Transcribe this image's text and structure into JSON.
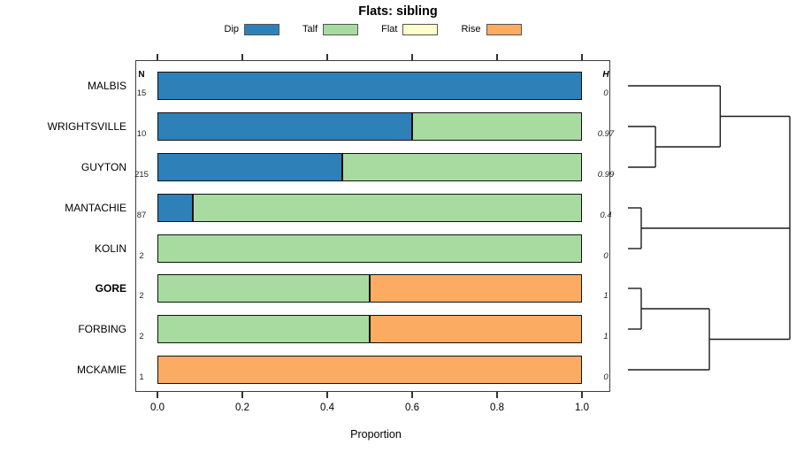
{
  "title": "Flats: sibling",
  "xlabel": "Proportion",
  "columns": {
    "n_header": "N",
    "h_header": "H"
  },
  "colors": {
    "Dip": "#2E80B8",
    "Talf": "#A8DBA0",
    "Flat": "#FFFFCC",
    "Rise": "#FBAC62",
    "bar_border": "#111111",
    "dendrogram_line": "#1c1c1c"
  },
  "legend": [
    {
      "label": "Dip",
      "color": "#2E80B8"
    },
    {
      "label": "Talf",
      "color": "#A8DBA0"
    },
    {
      "label": "Flat",
      "color": "#FFFFCC"
    },
    {
      "label": "Rise",
      "color": "#FBAC62"
    }
  ],
  "chart_data": {
    "type": "bar",
    "orientation": "horizontal",
    "stacked": true,
    "title": "Flats: sibling",
    "xlabel": "Proportion",
    "xlim": [
      0,
      1
    ],
    "x_ticks": [
      0,
      0.2,
      0.4,
      0.6,
      0.8,
      1
    ],
    "x_tick_labels": [
      "0.0",
      "0.2",
      "0.4",
      "0.6",
      "0.8",
      "1.0"
    ],
    "legend_position": "top",
    "series_names": [
      "Dip",
      "Talf",
      "Flat",
      "Rise"
    ],
    "rows": [
      {
        "label": "MALBIS",
        "n": "15",
        "h": "0",
        "bold": false,
        "segments": [
          {
            "series": "Dip",
            "value": 1.0
          }
        ]
      },
      {
        "label": "WRIGHTSVILLE",
        "n": "10",
        "h": "0.97",
        "bold": false,
        "segments": [
          {
            "series": "Dip",
            "value": 0.6
          },
          {
            "series": "Talf",
            "value": 0.4
          }
        ]
      },
      {
        "label": "GUYTON",
        "n": "215",
        "h": "0.99",
        "bold": false,
        "segments": [
          {
            "series": "Dip",
            "value": 0.435
          },
          {
            "series": "Talf",
            "value": 0.565
          }
        ]
      },
      {
        "label": "MANTACHIE",
        "n": "87",
        "h": "0.4",
        "bold": false,
        "segments": [
          {
            "series": "Dip",
            "value": 0.083
          },
          {
            "series": "Talf",
            "value": 0.917
          }
        ]
      },
      {
        "label": "KOLIN",
        "n": "2",
        "h": "0",
        "bold": false,
        "segments": [
          {
            "series": "Talf",
            "value": 1.0
          }
        ]
      },
      {
        "label": "GORE",
        "n": "2",
        "h": "1",
        "bold": true,
        "segments": [
          {
            "series": "Talf",
            "value": 0.5
          },
          {
            "series": "Rise",
            "value": 0.5
          }
        ]
      },
      {
        "label": "FORBING",
        "n": "2",
        "h": "1",
        "bold": false,
        "segments": [
          {
            "series": "Talf",
            "value": 0.5
          },
          {
            "series": "Rise",
            "value": 0.5
          }
        ]
      },
      {
        "label": "MCKAMIE",
        "n": "1",
        "h": "0",
        "bold": false,
        "segments": [
          {
            "series": "Rise",
            "value": 1.0
          }
        ]
      }
    ],
    "dendrogram": {
      "height_range": [
        0,
        1
      ],
      "tree": {
        "h": 1.0,
        "children": [
          {
            "h": 0.57,
            "children": [
              {
                "leaf": "MALBIS"
              },
              {
                "h": 0.17,
                "children": [
                  {
                    "leaf": "WRIGHTSVILLE"
                  },
                  {
                    "leaf": "GUYTON"
                  }
                ]
              }
            ]
          },
          {
            "h": 0.082,
            "children": [
              {
                "leaf": "MANTACHIE"
              },
              {
                "leaf": "KOLIN"
              }
            ]
          },
          {
            "h": 0.503,
            "children": [
              {
                "h": 0.082,
                "children": [
                  {
                    "leaf": "GORE"
                  },
                  {
                    "leaf": "FORBING"
                  }
                ]
              },
              {
                "leaf": "MCKAMIE"
              }
            ]
          }
        ]
      }
    }
  }
}
